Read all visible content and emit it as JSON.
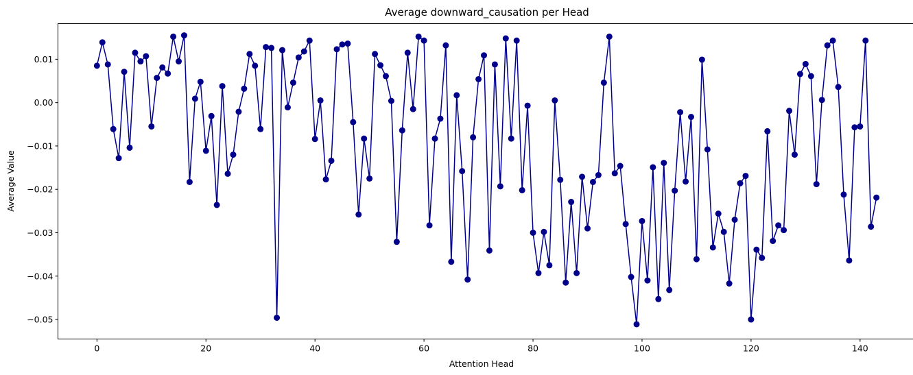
{
  "chart_data": {
    "type": "line",
    "title": "Average downward_causation per Head",
    "xlabel": "Attention Head",
    "ylabel": "Average Value",
    "xlim": [
      -7.15,
      150.15
    ],
    "ylim": [
      -0.0545,
      0.0182
    ],
    "x_ticks": [
      0,
      20,
      40,
      60,
      80,
      100,
      120,
      140
    ],
    "x_tick_labels": [
      "0",
      "20",
      "40",
      "60",
      "80",
      "100",
      "120",
      "140"
    ],
    "y_ticks": [
      0.01,
      0.0,
      -0.01,
      -0.02,
      -0.03,
      -0.04,
      -0.05
    ],
    "y_tick_labels": [
      "0.01",
      "0.00",
      "−0.01",
      "−0.02",
      "−0.03",
      "−0.04",
      "−0.05"
    ],
    "grid": false,
    "color": "#00008b",
    "markers": true,
    "series": [
      {
        "values": [
          0.0085,
          0.0139,
          0.0088,
          -0.0061,
          -0.0128,
          0.0071,
          -0.0104,
          0.0115,
          0.0095,
          0.0107,
          -0.0055,
          0.0057,
          0.0081,
          0.0067,
          0.0152,
          0.0095,
          0.0155,
          -0.0183,
          0.0009,
          0.0048,
          -0.0111,
          -0.0031,
          -0.0236,
          0.0038,
          -0.0164,
          -0.012,
          -0.0021,
          0.0032,
          0.0112,
          0.0085,
          -0.0061,
          0.0128,
          0.0126,
          -0.0496,
          0.0121,
          -0.0011,
          0.0046,
          0.0104,
          0.0118,
          0.0143,
          -0.0084,
          0.0005,
          -0.0177,
          -0.0134,
          0.0123,
          0.0134,
          0.0136,
          -0.0045,
          -0.0258,
          -0.0083,
          -0.0175,
          0.0112,
          0.0086,
          0.0061,
          0.0004,
          -0.0321,
          -0.0064,
          0.0115,
          -0.0015,
          0.0152,
          0.0143,
          -0.0283,
          -0.0083,
          -0.0037,
          0.0132,
          -0.0367,
          0.0017,
          -0.0158,
          -0.0408,
          -0.008,
          0.0054,
          0.0109,
          -0.0341,
          0.0088,
          -0.0193,
          0.0148,
          -0.0083,
          0.0143,
          -0.0202,
          -0.0007,
          -0.03,
          -0.0393,
          -0.0298,
          -0.0375,
          0.0005,
          -0.0178,
          -0.0415,
          -0.0229,
          -0.0393,
          -0.0171,
          -0.029,
          -0.0183,
          -0.0167,
          0.0046,
          0.0152,
          -0.0163,
          -0.0146,
          -0.028,
          -0.0402,
          -0.0511,
          -0.0273,
          -0.041,
          -0.0149,
          -0.0453,
          -0.0139,
          -0.0432,
          -0.0203,
          -0.0022,
          -0.0182,
          -0.0033,
          -0.0361,
          0.0099,
          -0.0108,
          -0.0334,
          -0.0256,
          -0.0298,
          -0.0417,
          -0.027,
          -0.0186,
          -0.0169,
          -0.05,
          -0.0339,
          -0.0358,
          -0.0066,
          -0.0319,
          -0.0283,
          -0.0294,
          -0.0019,
          -0.012,
          0.0066,
          0.0089,
          0.0061,
          -0.0188,
          0.0006,
          0.0132,
          0.0143,
          0.0036,
          -0.0212,
          -0.0364,
          -0.0057,
          -0.0055,
          0.0143,
          -0.0286,
          -0.0219
        ]
      }
    ]
  }
}
